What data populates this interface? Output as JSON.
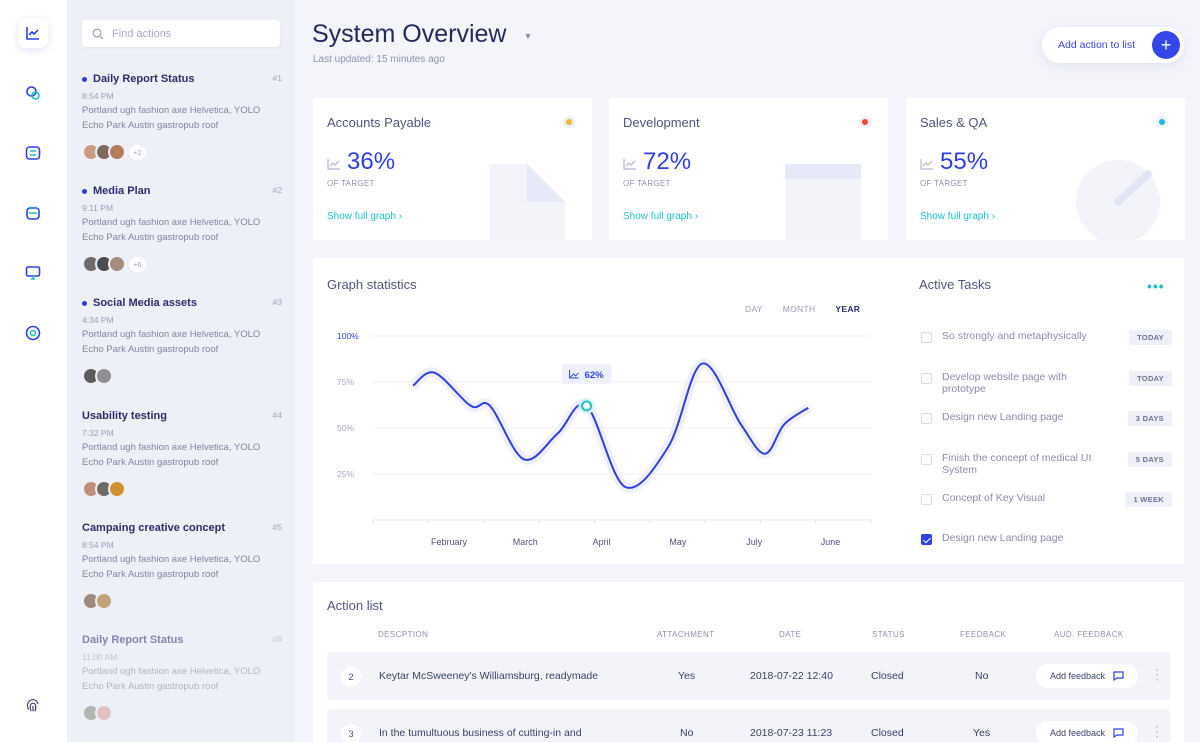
{
  "rail": {
    "items": [
      {
        "icon": "chart-line-icon",
        "active": true
      },
      {
        "icon": "chat-icon",
        "active": false
      },
      {
        "icon": "tasks-list-icon",
        "active": false
      },
      {
        "icon": "calendar-icon",
        "active": false
      },
      {
        "icon": "monitor-icon",
        "active": false
      },
      {
        "icon": "help-circle-icon",
        "active": false
      }
    ],
    "bottom_icon": "fingerprint-icon"
  },
  "search": {
    "placeholder": "Find actions"
  },
  "feed": [
    {
      "title": "Daily Report Status",
      "num": "#1",
      "time": "8:54 PM",
      "body": "Portland ugh fashion axe Helvetica, YOLO Echo Park Austin gastropub roof",
      "more": "+2",
      "unread": true
    },
    {
      "title": "Media Plan",
      "num": "#2",
      "time": "9:11 PM",
      "body": "Portland ugh fashion axe Helvetica, YOLO Echo Park Austin gastropub roof",
      "more": "+6",
      "unread": true
    },
    {
      "title": "Social Media assets",
      "num": "#3",
      "time": "4:34 PM",
      "body": "Portland ugh fashion axe Helvetica, YOLO Echo Park Austin gastropub roof",
      "more": "",
      "unread": true
    },
    {
      "title": "Usability testing",
      "num": "#4",
      "time": "7:32 PM",
      "body": "Portland ugh fashion axe Helvetica, YOLO Echo Park Austin gastropub roof",
      "more": "",
      "unread": false
    },
    {
      "title": "Campaing creative concept",
      "num": "#5",
      "time": "8:54 PM",
      "body": "Portland ugh fashion axe Helvetica, YOLO Echo Park Austin gastropub roof",
      "more": "",
      "unread": false
    },
    {
      "title": "Daily Report Status",
      "num": "#6",
      "time": "11:00 AM",
      "body": "Portland ugh fashion axe Helvetica, YOLO Echo Park Austin gastropub roof",
      "more": "",
      "unread": false
    }
  ],
  "header": {
    "title": "System Overview",
    "updated": "Last updated: 15 minutes ago",
    "add_action": "Add action to list"
  },
  "kpis": [
    {
      "title": "Accounts Payable",
      "value": "36%",
      "sub": "OF TARGET",
      "link": "Show full graph ›",
      "color": "#f5b731"
    },
    {
      "title": "Development",
      "value": "72%",
      "sub": "OF TARGET",
      "link": "Show full graph ›",
      "color": "#ee4c2a"
    },
    {
      "title": "Sales & QA",
      "value": "55%",
      "sub": "OF TARGET",
      "link": "Show full graph ›",
      "color": "#1fb6e5"
    }
  ],
  "graph": {
    "title": "Graph statistics",
    "ranges": [
      "DAY",
      "MONTH",
      "YEAR"
    ],
    "active_range": "YEAR",
    "tooltip": "62%"
  },
  "chart_data": {
    "type": "line",
    "title": "Graph statistics",
    "y_ticks": [
      "100%",
      "75%",
      "50%",
      "25%"
    ],
    "x_ticks": [
      "February",
      "March",
      "April",
      "May",
      "July",
      "June"
    ],
    "ylim": [
      0,
      100
    ],
    "series": [
      {
        "values": [
          {
            "x": 0.0,
            "y": 73
          },
          {
            "x": 0.45,
            "y": 80
          },
          {
            "x": 1.2,
            "y": 62
          },
          {
            "x": 1.6,
            "y": 62
          },
          {
            "x": 2.3,
            "y": 33
          },
          {
            "x": 3.0,
            "y": 47
          },
          {
            "x": 3.6,
            "y": 62
          },
          {
            "x": 4.4,
            "y": 18
          },
          {
            "x": 5.3,
            "y": 40
          },
          {
            "x": 6.0,
            "y": 85
          },
          {
            "x": 6.8,
            "y": 52
          },
          {
            "x": 7.3,
            "y": 36
          },
          {
            "x": 7.7,
            "y": 52
          },
          {
            "x": 8.2,
            "y": 61
          }
        ]
      }
    ],
    "highlight": {
      "x": 3.6,
      "y": 62,
      "label": "62%"
    },
    "grid": true
  },
  "tasks": {
    "title": "Active Tasks",
    "items": [
      {
        "text": "So strongly and metaphysically",
        "badge": "TODAY",
        "checked": false
      },
      {
        "text": "Develop website page with prototype",
        "badge": "TODAY",
        "checked": false
      },
      {
        "text": "Design new Landing page",
        "badge": "3 DAYS",
        "checked": false
      },
      {
        "text": "Finish the concept of medical UI System",
        "badge": "5 DAYS",
        "checked": false
      },
      {
        "text": "Concept of Key Visual",
        "badge": "1 WEEK",
        "checked": false
      },
      {
        "text": "Design new Landing page",
        "badge": "",
        "checked": true
      }
    ]
  },
  "actions": {
    "title": "Action list",
    "columns": [
      "DESCPTION",
      "ATTACHMENT",
      "DATE",
      "STATUS",
      "FEEDBACK",
      "AUD. FEEDBACK"
    ],
    "rows": [
      {
        "idx": "2",
        "desc": "Keytar McSweeney's Williamsburg, readymade",
        "attachment": "Yes",
        "date": "2018-07-22 12:40",
        "status": "Closed",
        "feedback": "No",
        "aud": "Add feedback"
      },
      {
        "idx": "3",
        "desc": "In the tumultuous business of cutting-in and",
        "attachment": "No",
        "date": "2018-07-23 11:23",
        "status": "Closed",
        "feedback": "Yes",
        "aud": "Add feedback"
      }
    ]
  }
}
